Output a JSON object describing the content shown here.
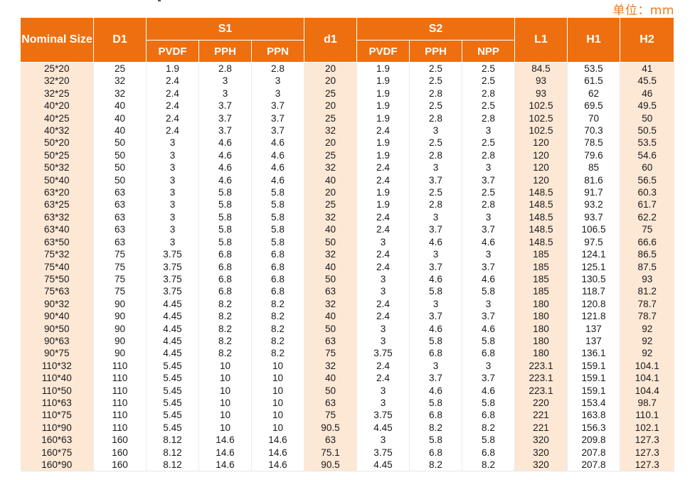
{
  "unit_label": "单位：mm",
  "headers": {
    "nominal_size": "Nominal Size",
    "d1_upper": "D1",
    "s1": "S1",
    "d1_lower": "d1",
    "s2": "S2",
    "l1": "L1",
    "h1": "H1",
    "h2": "H2",
    "s1_sub": [
      "PVDF",
      "PPH",
      "PPN"
    ],
    "s2_sub": [
      "PVDF",
      "PPH",
      "NPP"
    ]
  },
  "rows": [
    [
      "25*20",
      "25",
      "1.9",
      "2.8",
      "2.8",
      "20",
      "1.9",
      "2.5",
      "2.5",
      "84.5",
      "53.5",
      "41"
    ],
    [
      "32*20",
      "32",
      "2.4",
      "3",
      "3",
      "20",
      "1.9",
      "2.5",
      "2.5",
      "93",
      "61.5",
      "45.5"
    ],
    [
      "32*25",
      "32",
      "2.4",
      "3",
      "3",
      "25",
      "1.9",
      "2.8",
      "2.8",
      "93",
      "62",
      "46"
    ],
    [
      "40*20",
      "40",
      "2.4",
      "3.7",
      "3.7",
      "20",
      "1.9",
      "2.5",
      "2.5",
      "102.5",
      "69.5",
      "49.5"
    ],
    [
      "40*25",
      "40",
      "2.4",
      "3.7",
      "3.7",
      "25",
      "1.9",
      "2.8",
      "2.8",
      "102.5",
      "70",
      "50"
    ],
    [
      "40*32",
      "40",
      "2.4",
      "3.7",
      "3.7",
      "32",
      "2.4",
      "3",
      "3",
      "102.5",
      "70.3",
      "50.5"
    ],
    [
      "50*20",
      "50",
      "3",
      "4.6",
      "4.6",
      "20",
      "1.9",
      "2.5",
      "2.5",
      "120",
      "78.5",
      "53.5"
    ],
    [
      "50*25",
      "50",
      "3",
      "4.6",
      "4.6",
      "25",
      "1.9",
      "2.8",
      "2.8",
      "120",
      "79.6",
      "54.6"
    ],
    [
      "50*32",
      "50",
      "3",
      "4.6",
      "4.6",
      "32",
      "2.4",
      "3",
      "3",
      "120",
      "85",
      "60"
    ],
    [
      "50*40",
      "50",
      "3",
      "4.6",
      "4.6",
      "40",
      "2.4",
      "3.7",
      "3.7",
      "120",
      "81.6",
      "56.5"
    ],
    [
      "63*20",
      "63",
      "3",
      "5.8",
      "5.8",
      "20",
      "1.9",
      "2.5",
      "2.5",
      "148.5",
      "91.7",
      "60.3"
    ],
    [
      "63*25",
      "63",
      "3",
      "5.8",
      "5.8",
      "25",
      "1.9",
      "2.8",
      "2.8",
      "148.5",
      "93.2",
      "61.7"
    ],
    [
      "63*32",
      "63",
      "3",
      "5.8",
      "5.8",
      "32",
      "2.4",
      "3",
      "3",
      "148.5",
      "93.7",
      "62.2"
    ],
    [
      "63*40",
      "63",
      "3",
      "5.8",
      "5.8",
      "40",
      "2.4",
      "3.7",
      "3.7",
      "148.5",
      "106.5",
      "75"
    ],
    [
      "63*50",
      "63",
      "3",
      "5.8",
      "5.8",
      "50",
      "3",
      "4.6",
      "4.6",
      "148.5",
      "97.5",
      "66.6"
    ],
    [
      "75*32",
      "75",
      "3.75",
      "6.8",
      "6.8",
      "32",
      "2.4",
      "3",
      "3",
      "185",
      "124.1",
      "86.5"
    ],
    [
      "75*40",
      "75",
      "3.75",
      "6.8",
      "6.8",
      "40",
      "2.4",
      "3.7",
      "3.7",
      "185",
      "125.1",
      "87.5"
    ],
    [
      "75*50",
      "75",
      "3.75",
      "6.8",
      "6.8",
      "50",
      "3",
      "4.6",
      "4.6",
      "185",
      "130.5",
      "93"
    ],
    [
      "75*63",
      "75",
      "3.75",
      "6.8",
      "6.8",
      "63",
      "3",
      "5.8",
      "5.8",
      "185",
      "118.7",
      "81.2"
    ],
    [
      "90*32",
      "90",
      "4.45",
      "8.2",
      "8.2",
      "32",
      "2.4",
      "3",
      "3",
      "180",
      "120.8",
      "78.7"
    ],
    [
      "90*40",
      "90",
      "4.45",
      "8.2",
      "8.2",
      "40",
      "2.4",
      "3.7",
      "3.7",
      "180",
      "121.8",
      "78.7"
    ],
    [
      "90*50",
      "90",
      "4.45",
      "8.2",
      "8.2",
      "50",
      "3",
      "4.6",
      "4.6",
      "180",
      "137",
      "92"
    ],
    [
      "90*63",
      "90",
      "4.45",
      "8.2",
      "8.2",
      "63",
      "3",
      "5.8",
      "5.8",
      "180",
      "137",
      "92"
    ],
    [
      "90*75",
      "90",
      "4.45",
      "8.2",
      "8.2",
      "75",
      "3.75",
      "6.8",
      "6.8",
      "180",
      "136.1",
      "92"
    ],
    [
      "110*32",
      "110",
      "5.45",
      "10",
      "10",
      "32",
      "2.4",
      "3",
      "3",
      "223.1",
      "159.1",
      "104.1"
    ],
    [
      "110*40",
      "110",
      "5.45",
      "10",
      "10",
      "40",
      "2.4",
      "3.7",
      "3.7",
      "223.1",
      "159.1",
      "104.1"
    ],
    [
      "110*50",
      "110",
      "5.45",
      "10",
      "10",
      "50",
      "3",
      "4.6",
      "4.6",
      "223.1",
      "159.1",
      "104.4"
    ],
    [
      "110*63",
      "110",
      "5.45",
      "10",
      "10",
      "63",
      "3",
      "5.8",
      "5.8",
      "220",
      "153.4",
      "98.7"
    ],
    [
      "110*75",
      "110",
      "5.45",
      "10",
      "10",
      "75",
      "3.75",
      "6.8",
      "6.8",
      "221",
      "163.8",
      "110.1"
    ],
    [
      "110*90",
      "110",
      "5.45",
      "10",
      "10",
      "90.5",
      "4.45",
      "8.2",
      "8.2",
      "221",
      "156.3",
      "102.1"
    ],
    [
      "160*63",
      "160",
      "8.12",
      "14.6",
      "14.6",
      "63",
      "3",
      "5.8",
      "5.8",
      "320",
      "209.8",
      "127.3"
    ],
    [
      "160*75",
      "160",
      "8.12",
      "14.6",
      "14.6",
      "75.1",
      "3.75",
      "6.8",
      "6.8",
      "320",
      "207.8",
      "127.3"
    ],
    [
      "160*90",
      "160",
      "8.12",
      "14.6",
      "14.6",
      "90.5",
      "4.45",
      "8.2",
      "8.2",
      "320",
      "207.8",
      "127.3"
    ]
  ],
  "colors": {
    "header_bg": "#ee6f10",
    "row_tint": "#fde8d6",
    "unit_text": "#f07a1a"
  }
}
